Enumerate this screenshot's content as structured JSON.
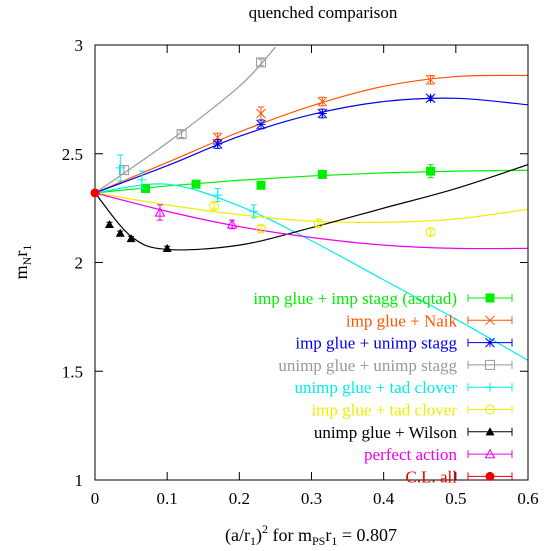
{
  "chart_data": {
    "type": "line",
    "title": "quenched comparison",
    "xlabel": {
      "main": "(a/r",
      "sub1": "1",
      "mid": ")",
      "sup": "2",
      "rest": " for m",
      "sub2": "PS",
      "rest2": "r",
      "sub3": "1",
      "tail": " = 0.807"
    },
    "ylabel": {
      "main": "m",
      "sub1": "N",
      "mid": "r",
      "sub2": "1"
    },
    "xlim": [
      0,
      0.6
    ],
    "ylim": [
      1,
      3
    ],
    "xticks": [
      "0",
      "0.1",
      "0.2",
      "0.3",
      "0.4",
      "0.5",
      "0.6"
    ],
    "yticks": [
      "1",
      "1.5",
      "2",
      "2.5",
      "3"
    ],
    "legend_position": "lower-right",
    "series": [
      {
        "name": "imp glue + imp stagg (asqtad)",
        "color": "#00ee00",
        "marker": "filled-square",
        "points": [
          [
            0.07,
            2.34
          ],
          [
            0.14,
            2.36
          ],
          [
            0.23,
            2.355
          ],
          [
            0.315,
            2.405
          ],
          [
            0.465,
            2.42
          ]
        ],
        "errors": [
          0.01,
          0.01,
          0.01,
          0.01,
          0.03
        ],
        "fit": [
          [
            0,
            2.32
          ],
          [
            0.1,
            2.352
          ],
          [
            0.2,
            2.378
          ],
          [
            0.3,
            2.398
          ],
          [
            0.4,
            2.412
          ],
          [
            0.5,
            2.42
          ],
          [
            0.6,
            2.424
          ]
        ]
      },
      {
        "name": "imp glue + Naik",
        "color": "#ff5500",
        "marker": "x",
        "points": [
          [
            0.17,
            2.575
          ],
          [
            0.23,
            2.685
          ],
          [
            0.315,
            2.74
          ],
          [
            0.465,
            2.84
          ]
        ],
        "errors": [
          0.02,
          0.03,
          0.02,
          0.02
        ],
        "fit": [
          [
            0,
            2.32
          ],
          [
            0.1,
            2.46
          ],
          [
            0.2,
            2.6
          ],
          [
            0.3,
            2.72
          ],
          [
            0.4,
            2.81
          ],
          [
            0.5,
            2.855
          ],
          [
            0.6,
            2.86
          ]
        ]
      },
      {
        "name": "imp glue + unimp stagg",
        "color": "#0000ee",
        "marker": "star",
        "points": [
          [
            0.17,
            2.545
          ],
          [
            0.23,
            2.635
          ],
          [
            0.315,
            2.685
          ],
          [
            0.465,
            2.755
          ]
        ],
        "errors": [
          0.02,
          0.02,
          0.02,
          0.01
        ],
        "fit": [
          [
            0,
            2.32
          ],
          [
            0.1,
            2.445
          ],
          [
            0.2,
            2.58
          ],
          [
            0.3,
            2.68
          ],
          [
            0.4,
            2.74
          ],
          [
            0.5,
            2.755
          ],
          [
            0.6,
            2.725
          ]
        ]
      },
      {
        "name": "unimp glue + unimp stagg",
        "color": "#999999",
        "marker": "open-square",
        "points": [
          [
            0.04,
            2.425
          ],
          [
            0.12,
            2.59
          ],
          [
            0.23,
            2.92
          ]
        ],
        "errors": [
          0.02,
          0.015,
          0.015
        ],
        "fit": [
          [
            0,
            2.32
          ],
          [
            0.1,
            2.55
          ],
          [
            0.2,
            2.81
          ],
          [
            0.25,
            2.99
          ]
        ]
      },
      {
        "name": "unimp glue + tad clover",
        "color": "#00eeee",
        "marker": "plus",
        "points": [
          [
            0.035,
            2.435
          ],
          [
            0.065,
            2.38
          ],
          [
            0.17,
            2.31
          ],
          [
            0.22,
            2.235
          ]
        ],
        "errors": [
          0.06,
          0.04,
          0.03,
          0.03
        ],
        "fit": [
          [
            0,
            2.32
          ],
          [
            0.1,
            2.36
          ],
          [
            0.2,
            2.26
          ],
          [
            0.3,
            2.1
          ],
          [
            0.4,
            1.92
          ],
          [
            0.5,
            1.74
          ],
          [
            0.6,
            1.55
          ]
        ]
      },
      {
        "name": "imp glue + tad clover",
        "color": "#eeee00",
        "marker": "open-circle",
        "points": [
          [
            0.165,
            2.26
          ],
          [
            0.23,
            2.155
          ],
          [
            0.31,
            2.18
          ],
          [
            0.465,
            2.14
          ]
        ],
        "errors": [
          0.015,
          0.015,
          0.015,
          0.015
        ],
        "fit": [
          [
            0,
            2.32
          ],
          [
            0.1,
            2.265
          ],
          [
            0.2,
            2.22
          ],
          [
            0.3,
            2.19
          ],
          [
            0.4,
            2.185
          ],
          [
            0.5,
            2.2
          ],
          [
            0.6,
            2.245
          ]
        ]
      },
      {
        "name": "unimp glue + Wilson",
        "color": "#000000",
        "marker": "filled-triangle",
        "points": [
          [
            0.02,
            2.175
          ],
          [
            0.035,
            2.135
          ],
          [
            0.05,
            2.11
          ],
          [
            0.1,
            2.065
          ]
        ],
        "errors": [
          0.01,
          0.01,
          0.01,
          0.01
        ],
        "fit": [
          [
            0,
            2.32
          ],
          [
            0.05,
            2.12
          ],
          [
            0.1,
            2.06
          ],
          [
            0.2,
            2.08
          ],
          [
            0.3,
            2.16
          ],
          [
            0.4,
            2.25
          ],
          [
            0.5,
            2.34
          ],
          [
            0.6,
            2.45
          ]
        ]
      },
      {
        "name": "perfect action",
        "color": "#ee00ee",
        "marker": "open-triangle",
        "points": [
          [
            0.09,
            2.23
          ],
          [
            0.19,
            2.175
          ]
        ],
        "errors": [
          0.035,
          0.02
        ],
        "fit": [
          [
            0,
            2.32
          ],
          [
            0.1,
            2.235
          ],
          [
            0.2,
            2.165
          ],
          [
            0.3,
            2.115
          ],
          [
            0.4,
            2.08
          ],
          [
            0.5,
            2.065
          ],
          [
            0.6,
            2.065
          ]
        ]
      },
      {
        "name": "C.L. all",
        "color": "#ee0000",
        "marker": "filled-circle",
        "points": [
          [
            0,
            2.32
          ]
        ],
        "errors": [
          0.01
        ],
        "fit": []
      }
    ]
  }
}
